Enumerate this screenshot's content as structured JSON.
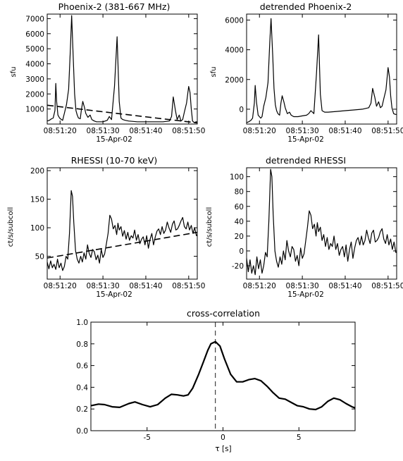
{
  "chart_data": [
    {
      "id": "p1",
      "type": "line",
      "title": "Phoenix-2 (381-667 MHz)",
      "xlabel": "15-Apr-02",
      "ylabel": "sfu",
      "x_ticks": [
        "08:51:20",
        "08:51:30",
        "08:51:40",
        "08:51:50"
      ],
      "x_tick_seconds": [
        20,
        30,
        40,
        50
      ],
      "xlim_seconds": [
        17,
        52
      ],
      "y_ticks": [
        1000,
        2000,
        3000,
        4000,
        5000,
        6000,
        7000
      ],
      "ylim": [
        0,
        7300
      ],
      "series": [
        {
          "style": "solid",
          "t": [
            17,
            17.5,
            18,
            18.4,
            18.8,
            19,
            19.2,
            19.5,
            19.9,
            20.3,
            20.6,
            21,
            21.5,
            22,
            22.4,
            22.7,
            23.1,
            23.4,
            23.7,
            24,
            24.3,
            24.7,
            25,
            25.3,
            25.7,
            26,
            26.5,
            27,
            27.4,
            28,
            28.5,
            29,
            30,
            31,
            31.5,
            32,
            32.7,
            33.3,
            33.8,
            34.2,
            34.6,
            35.2,
            36,
            38,
            40,
            42,
            44,
            45.5,
            46,
            46.4,
            46.9,
            47.3,
            47.8,
            48.2,
            48.6,
            49,
            49.5,
            50,
            50.3,
            50.6,
            50.9,
            51.3,
            51.7,
            52
          ],
          "v": [
            200,
            250,
            350,
            400,
            900,
            2700,
            1500,
            600,
            400,
            300,
            250,
            700,
            1300,
            2300,
            5000,
            7200,
            4200,
            2000,
            900,
            600,
            400,
            350,
            1000,
            1500,
            1100,
            700,
            450,
            600,
            300,
            200,
            150,
            150,
            150,
            250,
            500,
            300,
            2500,
            5800,
            1500,
            400,
            300,
            250,
            200,
            150,
            150,
            150,
            150,
            200,
            500,
            1800,
            900,
            300,
            600,
            200,
            300,
            800,
            1400,
            2500,
            2100,
            1000,
            200,
            100,
            150,
            150
          ]
        },
        {
          "style": "dashed",
          "t": [
            17,
            52
          ],
          "v": [
            1250,
            80
          ]
        }
      ]
    },
    {
      "id": "p2",
      "type": "line",
      "title": "detrended Phoenix-2",
      "xlabel": "15-Apr-02",
      "ylabel": "sfu",
      "x_ticks": [
        "08:51:20",
        "08:51:30",
        "08:51:40",
        "08:51:50"
      ],
      "x_tick_seconds": [
        20,
        30,
        40,
        50
      ],
      "xlim_seconds": [
        17,
        52
      ],
      "y_ticks": [
        0,
        2000,
        4000,
        6000
      ],
      "ylim": [
        -1000,
        6400
      ],
      "series": [
        {
          "style": "solid",
          "t": [
            17,
            17.5,
            18,
            18.4,
            18.8,
            19,
            19.3,
            19.7,
            20.3,
            20.6,
            21,
            21.5,
            22,
            22.4,
            22.7,
            23.1,
            23.4,
            23.7,
            24,
            24.3,
            24.7,
            25,
            25.3,
            25.7,
            26,
            26.5,
            27,
            27.4,
            28,
            28.5,
            29,
            30,
            31,
            31.5,
            32,
            32.7,
            33.3,
            33.8,
            34.2,
            34.6,
            35.2,
            36,
            38,
            40,
            42,
            44,
            45.5,
            46,
            46.4,
            46.9,
            47.3,
            47.8,
            48.2,
            48.6,
            49,
            49.5,
            50,
            50.3,
            50.6,
            50.9,
            51.3,
            51.7,
            52
          ],
          "v": [
            -900,
            -850,
            -750,
            -600,
            400,
            1600,
            500,
            -400,
            -600,
            -500,
            200,
            800,
            1800,
            4500,
            6100,
            3600,
            1400,
            300,
            -100,
            -300,
            -400,
            400,
            900,
            500,
            100,
            -300,
            -200,
            -400,
            -500,
            -500,
            -500,
            -450,
            -400,
            -300,
            -100,
            -300,
            2400,
            5000,
            1000,
            -100,
            -200,
            -200,
            -150,
            -100,
            -50,
            0,
            100,
            400,
            1400,
            800,
            200,
            500,
            100,
            200,
            700,
            1300,
            2800,
            2200,
            900,
            100,
            -300,
            -350,
            -350
          ]
        }
      ]
    },
    {
      "id": "r1",
      "type": "line",
      "title": "RHESSI (10-70 keV)",
      "xlabel": "15-Apr-02",
      "ylabel": "ct/s/subcoll",
      "x_ticks": [
        "08:51:20",
        "08:51:30",
        "08:51:40",
        "08:51:50"
      ],
      "x_tick_seconds": [
        20,
        30,
        40,
        50
      ],
      "xlim_seconds": [
        17,
        52
      ],
      "y_ticks": [
        50,
        100,
        150,
        200
      ],
      "ylim": [
        10,
        205
      ],
      "series": [
        {
          "style": "solid",
          "t": [
            17,
            17.4,
            17.8,
            18.2,
            18.6,
            19,
            19.4,
            19.8,
            20.2,
            20.6,
            21,
            21.4,
            21.8,
            22.2,
            22.6,
            22.9,
            23.2,
            23.6,
            24,
            24.4,
            24.8,
            25.2,
            25.6,
            26,
            26.4,
            26.8,
            27.2,
            27.6,
            28,
            28.4,
            28.8,
            29.2,
            29.6,
            30,
            30.4,
            30.8,
            31.2,
            31.6,
            32,
            32.4,
            32.8,
            33.2,
            33.5,
            33.8,
            34.2,
            34.6,
            35,
            35.4,
            35.8,
            36.2,
            36.6,
            37,
            37.4,
            37.8,
            38.2,
            38.6,
            39,
            39.4,
            39.8,
            40.2,
            40.6,
            41,
            41.4,
            41.8,
            42.2,
            42.6,
            43,
            43.4,
            43.8,
            44.2,
            44.6,
            45,
            45.4,
            45.8,
            46.2,
            46.6,
            47,
            47.4,
            47.8,
            48.2,
            48.6,
            49,
            49.4,
            49.8,
            50.2,
            50.6,
            51,
            51.4,
            51.8,
            52
          ],
          "v": [
            40,
            28,
            42,
            30,
            36,
            27,
            45,
            30,
            38,
            25,
            32,
            50,
            45,
            90,
            165,
            155,
            110,
            60,
            45,
            38,
            50,
            40,
            56,
            45,
            70,
            55,
            48,
            62,
            58,
            44,
            52,
            38,
            62,
            48,
            54,
            72,
            90,
            122,
            115,
            98,
            104,
            88,
            108,
            96,
            102,
            85,
            95,
            80,
            92,
            78,
            86,
            82,
            96,
            78,
            88,
            72,
            80,
            84,
            70,
            86,
            64,
            80,
            90,
            70,
            84,
            94,
            98,
            88,
            102,
            90,
            96,
            110,
            100,
            92,
            106,
            112,
            96,
            98,
            104,
            112,
            118,
            102,
            98,
            110,
            96,
            104,
            90,
            100,
            86,
            88
          ]
        },
        {
          "style": "dashed",
          "t": [
            17,
            52
          ],
          "v": [
            47,
            92
          ]
        }
      ]
    },
    {
      "id": "r2",
      "type": "line",
      "title": "detrended RHESSI",
      "xlabel": "15-Apr-02",
      "ylabel": "ct/s/subcoll",
      "x_ticks": [
        "08:51:20",
        "08:51:30",
        "08:51:40",
        "08:51:50"
      ],
      "x_tick_seconds": [
        20,
        30,
        40,
        50
      ],
      "xlim_seconds": [
        17,
        52
      ],
      "y_ticks": [
        -20,
        0,
        20,
        40,
        60,
        80,
        100
      ],
      "ylim": [
        -38,
        112
      ],
      "series": [
        {
          "style": "solid",
          "t": [
            17,
            17.4,
            17.8,
            18.2,
            18.6,
            19,
            19.4,
            19.8,
            20.2,
            20.6,
            21,
            21.4,
            21.8,
            22.2,
            22.6,
            22.9,
            23.2,
            23.6,
            24,
            24.4,
            24.8,
            25.2,
            25.6,
            26,
            26.4,
            26.8,
            27.2,
            27.6,
            28,
            28.4,
            28.8,
            29.2,
            29.6,
            30,
            30.4,
            30.8,
            31.2,
            31.6,
            32,
            32.4,
            32.8,
            33.2,
            33.5,
            33.8,
            34.2,
            34.6,
            35,
            35.4,
            35.8,
            36.2,
            36.6,
            37,
            37.4,
            37.8,
            38.2,
            38.6,
            39,
            39.4,
            39.8,
            40.2,
            40.6,
            41,
            41.4,
            41.8,
            42.2,
            42.6,
            43,
            43.4,
            43.8,
            44.2,
            44.6,
            45,
            45.4,
            45.8,
            46.2,
            46.6,
            47,
            47.4,
            47.8,
            48.2,
            48.6,
            49,
            49.4,
            49.8,
            50.2,
            50.6,
            51,
            51.4,
            51.8,
            52
          ],
          "v": [
            -10,
            -28,
            -12,
            -30,
            -20,
            -32,
            -8,
            -24,
            -12,
            -30,
            -20,
            -2,
            -8,
            40,
            110,
            100,
            50,
            0,
            -14,
            -22,
            -8,
            -18,
            0,
            -12,
            14,
            0,
            -8,
            6,
            2,
            -14,
            -6,
            -20,
            4,
            -10,
            -4,
            14,
            32,
            54,
            48,
            30,
            36,
            20,
            38,
            26,
            32,
            14,
            22,
            6,
            18,
            2,
            10,
            6,
            20,
            2,
            10,
            -6,
            2,
            6,
            -8,
            8,
            -14,
            2,
            12,
            -10,
            4,
            14,
            18,
            8,
            20,
            8,
            14,
            28,
            18,
            10,
            24,
            28,
            12,
            14,
            18,
            26,
            30,
            16,
            10,
            22,
            8,
            16,
            2,
            12,
            -2,
            -2
          ]
        }
      ]
    },
    {
      "id": "cc",
      "type": "line",
      "title": "cross-correlation",
      "xlabel": "τ [s]",
      "ylabel": "",
      "x_ticks": [
        "-5",
        "0",
        "5"
      ],
      "x_tick_values": [
        -5,
        0,
        5
      ],
      "xlim": [
        -8.7,
        8.7
      ],
      "y_ticks": [
        "0.0",
        "0.2",
        "0.4",
        "0.6",
        "0.8",
        "1.0"
      ],
      "y_tick_values": [
        0,
        0.2,
        0.4,
        0.6,
        0.8,
        1.0
      ],
      "ylim": [
        0,
        1.0
      ],
      "vline_x": -0.5,
      "series": [
        {
          "style": "solid",
          "x": [
            -8.7,
            -8.2,
            -7.8,
            -7.3,
            -6.8,
            -6.2,
            -5.8,
            -5.3,
            -4.8,
            -4.3,
            -3.8,
            -3.4,
            -3.0,
            -2.6,
            -2.3,
            -2.0,
            -1.6,
            -1.3,
            -1.0,
            -0.8,
            -0.5,
            -0.2,
            0.1,
            0.5,
            0.9,
            1.3,
            1.7,
            2.1,
            2.5,
            2.9,
            3.3,
            3.7,
            4.1,
            4.5,
            4.9,
            5.3,
            5.7,
            6.1,
            6.5,
            6.9,
            7.3,
            7.7,
            8.1,
            8.5,
            8.7
          ],
          "v": [
            0.23,
            0.245,
            0.24,
            0.22,
            0.215,
            0.25,
            0.265,
            0.24,
            0.22,
            0.24,
            0.3,
            0.335,
            0.33,
            0.32,
            0.33,
            0.39,
            0.52,
            0.63,
            0.74,
            0.8,
            0.82,
            0.78,
            0.66,
            0.52,
            0.45,
            0.45,
            0.47,
            0.48,
            0.46,
            0.41,
            0.35,
            0.3,
            0.29,
            0.26,
            0.23,
            0.22,
            0.2,
            0.195,
            0.22,
            0.27,
            0.3,
            0.285,
            0.25,
            0.22,
            0.21
          ]
        }
      ]
    }
  ]
}
